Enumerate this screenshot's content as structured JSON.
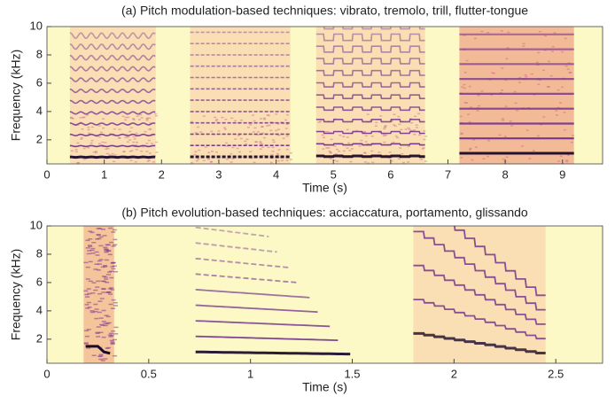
{
  "chart_data": [
    {
      "type": "spectrogram",
      "title": "(a) Pitch modulation-based techniques: vibrato, tremolo, trill, flutter-tongue",
      "xlabel": "Time (s)",
      "ylabel": "Frequency (kHz)",
      "xlim": [
        0,
        9.7
      ],
      "ylim": [
        0.3,
        10
      ],
      "xticks": [
        0,
        1,
        2,
        3,
        4,
        5,
        6,
        7,
        8,
        9
      ],
      "yticks": [
        2,
        4,
        6,
        8,
        10
      ]
    },
    {
      "type": "spectrogram",
      "title": "(b) Pitch evolution-based techniques: acciaccatura, portamento, glissando",
      "xlabel": "Time (s)",
      "ylabel": "Frequency (kHz)",
      "xlim": [
        0,
        2.73
      ],
      "ylim": [
        0.3,
        10
      ],
      "xticks": [
        0,
        0.5,
        1,
        1.5,
        2,
        2.5
      ],
      "yticks": [
        2,
        4,
        6,
        8,
        10
      ]
    }
  ]
}
